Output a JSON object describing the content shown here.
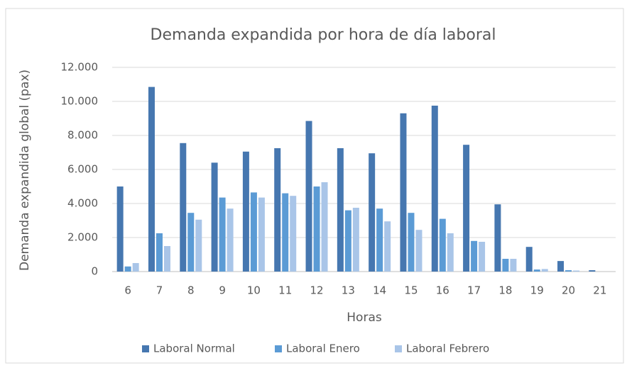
{
  "chart_data": {
    "type": "bar",
    "title": "Demanda expandida por hora de día laboral",
    "x_label": "Horas",
    "y_label": "Demanda expandida global (pax)",
    "categories": [
      "6",
      "7",
      "8",
      "9",
      "10",
      "11",
      "12",
      "13",
      "14",
      "15",
      "16",
      "17",
      "18",
      "19",
      "20",
      "21"
    ],
    "series": [
      {
        "name": "Laboral Normal",
        "color": "#4677b0",
        "values": [
          5000,
          10850,
          7550,
          6400,
          7050,
          7250,
          8850,
          7250,
          6950,
          9300,
          9750,
          7450,
          3950,
          1450,
          620,
          80
        ]
      },
      {
        "name": "Laboral Enero",
        "color": "#5b9bd5",
        "values": [
          300,
          2250,
          3450,
          4350,
          4650,
          4600,
          5000,
          3600,
          3700,
          3450,
          3100,
          1800,
          750,
          120,
          80,
          0
        ]
      },
      {
        "name": "Laboral Febrero",
        "color": "#a9c5e8",
        "values": [
          500,
          1500,
          3050,
          3700,
          4350,
          4450,
          5250,
          3750,
          2950,
          2450,
          2250,
          1750,
          750,
          150,
          60,
          0
        ]
      }
    ],
    "ylim": [
      0,
      12000
    ],
    "yticks": [
      0,
      {
        "value": 2000,
        "label": "2.000"
      },
      {
        "value": 4000,
        "label": "4.000"
      },
      {
        "value": 6000,
        "label": "6.000"
      },
      {
        "value": 8000,
        "label": "8.000"
      },
      {
        "value": 10000,
        "label": "10.000"
      },
      {
        "value": 12000,
        "label": "12.000"
      }
    ],
    "grid": true,
    "legend": "bottom"
  }
}
